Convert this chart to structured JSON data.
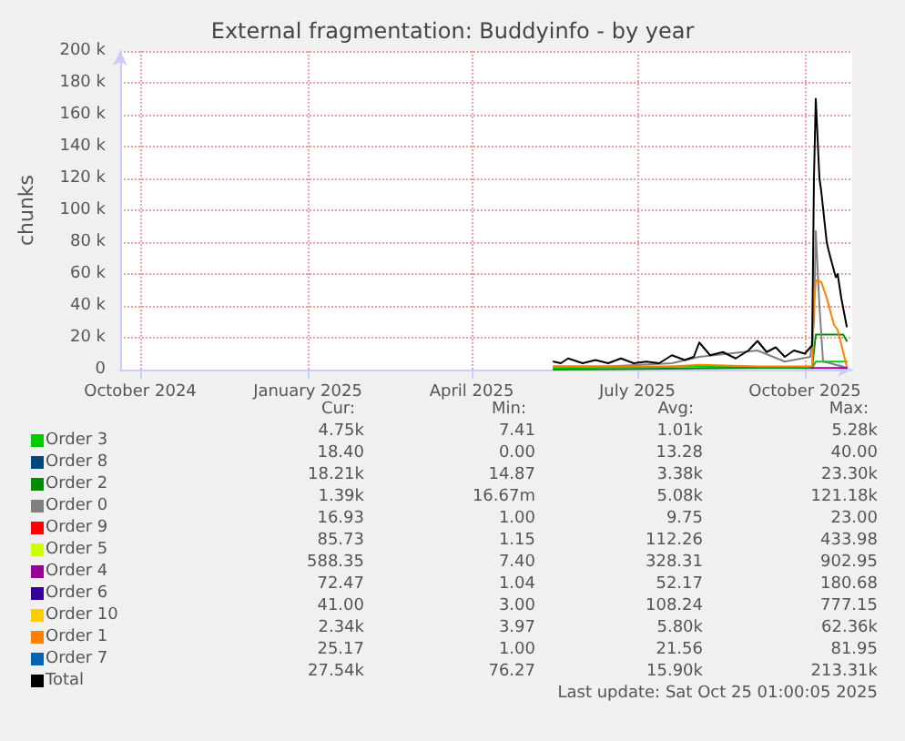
{
  "chart_data": {
    "type": "line",
    "title": "External fragmentation: Buddyinfo - by year",
    "ylabel": "chunks",
    "xlim": [
      "2024-09-20",
      "2025-10-27"
    ],
    "xticks": [
      {
        "value": "2024-10-01",
        "label": "October 2024"
      },
      {
        "value": "2025-01-01",
        "label": "January 2025"
      },
      {
        "value": "2025-04-01",
        "label": "April 2025"
      },
      {
        "value": "2025-07-01",
        "label": "July 2025"
      },
      {
        "value": "2025-10-01",
        "label": "October 2025"
      }
    ],
    "ylim": [
      0,
      200000
    ],
    "yticks": [
      0,
      {
        "value": 20000,
        "label": "20 k"
      },
      {
        "value": 40000,
        "label": "40 k"
      },
      {
        "value": 60000,
        "label": "60 k"
      },
      {
        "value": 80000,
        "label": "80 k"
      },
      {
        "value": 100000,
        "label": "100 k"
      },
      {
        "value": 120000,
        "label": "120 k"
      },
      {
        "value": 140000,
        "label": "140 k"
      },
      {
        "value": 160000,
        "label": "160 k"
      },
      {
        "value": 180000,
        "label": "180 k"
      },
      {
        "value": 200000,
        "label": "200 k"
      }
    ],
    "grid": true,
    "legend": "bottom left",
    "marker": "none",
    "line_style": "solid",
    "series": [
      {
        "name": "Order 3",
        "color": "#00cc00",
        "x": [
          "2025-05-16",
          "2025-08-01",
          "2025-10-05",
          "2025-10-07",
          "2025-10-24"
        ],
        "values": [
          1000,
          2000,
          1000,
          5000,
          5000
        ]
      },
      {
        "name": "Order 8",
        "color": "#00487d"
      },
      {
        "name": "Order 2",
        "color": "#008f00",
        "x": [
          "2025-05-16",
          "2025-09-01",
          "2025-10-05",
          "2025-10-07",
          "2025-10-22",
          "2025-10-24"
        ],
        "values": [
          0,
          1000,
          1000,
          22000,
          22000,
          18000
        ]
      },
      {
        "name": "Order 0",
        "color": "#808080",
        "x": [
          "2025-05-16",
          "2025-06-15",
          "2025-07-20",
          "2025-08-04",
          "2025-09-05",
          "2025-09-20",
          "2025-10-04",
          "2025-10-06",
          "2025-10-07",
          "2025-10-09",
          "2025-10-11",
          "2025-10-15",
          "2025-10-24"
        ],
        "values": [
          2000,
          2000,
          4000,
          8000,
          12000,
          5000,
          8000,
          30000,
          87000,
          40000,
          5000,
          4000,
          1000
        ]
      },
      {
        "name": "Order 9",
        "color": "#ff0000"
      },
      {
        "name": "Order 5",
        "color": "#ccff00"
      },
      {
        "name": "Order 4",
        "color": "#990099",
        "x": [
          "2025-10-05",
          "2025-10-24"
        ],
        "values": [
          1000,
          1000
        ]
      },
      {
        "name": "Order 6",
        "color": "#330099"
      },
      {
        "name": "Order 10",
        "color": "#ffcc00"
      },
      {
        "name": "Order 1",
        "color": "#ff8000",
        "x": [
          "2025-05-16",
          "2025-07-20",
          "2025-08-04",
          "2025-09-05",
          "2025-10-05",
          "2025-10-06",
          "2025-10-07",
          "2025-10-10",
          "2025-10-13",
          "2025-10-17",
          "2025-10-19",
          "2025-10-24"
        ],
        "values": [
          2000,
          2000,
          3000,
          2000,
          2000,
          40000,
          56000,
          55000,
          45000,
          28000,
          25000,
          2000
        ]
      },
      {
        "name": "Order 7",
        "color": "#0066b3"
      },
      {
        "name": "Total",
        "color": "#000000",
        "x": [
          "2025-05-16",
          "2025-05-20",
          "2025-05-24",
          "2025-06-01",
          "2025-06-08",
          "2025-06-15",
          "2025-06-22",
          "2025-06-29",
          "2025-07-06",
          "2025-07-13",
          "2025-07-20",
          "2025-07-27",
          "2025-08-01",
          "2025-08-04",
          "2025-08-10",
          "2025-08-17",
          "2025-08-24",
          "2025-08-31",
          "2025-09-05",
          "2025-09-10",
          "2025-09-15",
          "2025-09-20",
          "2025-09-25",
          "2025-10-01",
          "2025-10-04",
          "2025-10-05",
          "2025-10-06",
          "2025-10-07",
          "2025-10-09",
          "2025-10-10",
          "2025-10-13",
          "2025-10-14",
          "2025-10-17",
          "2025-10-18",
          "2025-10-19",
          "2025-10-21",
          "2025-10-24"
        ],
        "values": [
          5000,
          4000,
          7000,
          4000,
          6000,
          4000,
          7000,
          4000,
          5000,
          4000,
          9000,
          6000,
          8000,
          17000,
          9000,
          11000,
          7000,
          12000,
          18000,
          11000,
          14000,
          8000,
          12000,
          10000,
          14000,
          15000,
          120000,
          170000,
          120000,
          112000,
          80000,
          75000,
          62000,
          58000,
          60000,
          45000,
          27000
        ]
      }
    ],
    "annotations": [
      "Cur:",
      "Min:",
      "Avg:",
      "Max:",
      "4.75k",
      "7.41",
      "1.01k",
      "5.28k",
      "18.40",
      "0.00",
      "13.28",
      "40.00",
      "18.21k",
      "14.87",
      "3.38k",
      "23.30k",
      "1.39k",
      "16.67m",
      "5.08k",
      "121.18k",
      "16.93",
      "1.00",
      "9.75",
      "23.00",
      "85.73",
      "1.15",
      "112.26",
      "433.98",
      "588.35",
      "7.40",
      "328.31",
      "902.95",
      "72.47",
      "1.04",
      "52.17",
      "180.68",
      "41.00",
      "3.00",
      "108.24",
      "777.15",
      "2.34k",
      "3.97",
      "5.80k",
      "62.36k",
      "25.17",
      "1.00",
      "21.56",
      "81.95",
      "27.54k",
      "76.27",
      "15.90k",
      "213.31k",
      "Last update: Sat Oct 25 01:00:05 2025"
    ]
  }
}
